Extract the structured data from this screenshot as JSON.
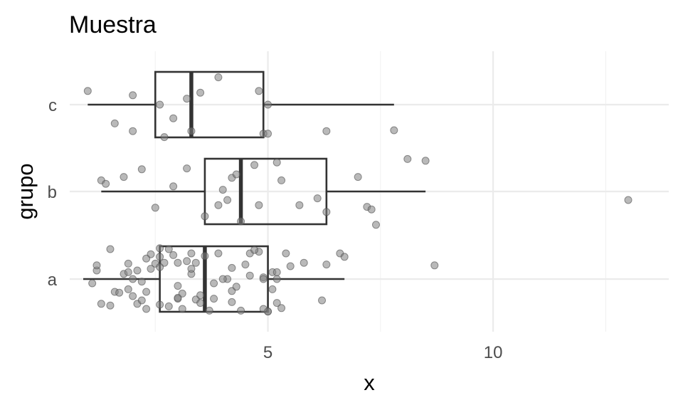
{
  "chart_data": {
    "type": "boxplot",
    "title": "Muestra",
    "xlabel": "x",
    "ylabel": "grupo",
    "xlim": [
      0.6,
      13.9
    ],
    "x_ticks": [
      5,
      10
    ],
    "x_minor": [
      2.5,
      7.5,
      12.5
    ],
    "categories": [
      "a",
      "b",
      "c"
    ],
    "grid": true,
    "orientation": "horizontal",
    "boxes": [
      {
        "group": "a",
        "whisker_low": 0.9,
        "q1": 2.6,
        "median": 3.6,
        "q3": 5.0,
        "whisker_high": 6.7
      },
      {
        "group": "b",
        "whisker_low": 1.3,
        "q1": 3.6,
        "median": 4.4,
        "q3": 6.3,
        "whisker_high": 8.5
      },
      {
        "group": "c",
        "whisker_low": 1.0,
        "q1": 2.5,
        "median": 3.3,
        "q3": 4.9,
        "whisker_high": 7.8
      }
    ],
    "points": [
      {
        "group": "a",
        "x": [
          1.8,
          2.6,
          1.9,
          3.3,
          2.0,
          5.1,
          3.6,
          4.5,
          1.9,
          2.4,
          1.2,
          4.1,
          3.0,
          2.3,
          2.8,
          1.6,
          3.8,
          4.9,
          2.6,
          4.2,
          3.4,
          2.3,
          5.2,
          3.5,
          3.2,
          1.5,
          4.3,
          5.8,
          2.0,
          3.0,
          2.4,
          6.6,
          1.1,
          4.6,
          5.0,
          2.1,
          3.0,
          6.3,
          2.6,
          3.1,
          5.4,
          2.2,
          4.2,
          6.2,
          3.8,
          5.3,
          4.0,
          3.3,
          1.7,
          2.9,
          3.5,
          2.5,
          4.8,
          4.2,
          1.2,
          3.7,
          2.1,
          5.1,
          1.3,
          2.8,
          5.0,
          4.6,
          3.1,
          6.7,
          2.3,
          4.4,
          5.2,
          1.9,
          3.0,
          2.7,
          8.7,
          4.9,
          2.6,
          3.9,
          5.5,
          1.5,
          4.7,
          5.2,
          3.4,
          2.2,
          3.3,
          4.9
        ],
        "jitter": [
          0.06,
          0.36,
          -0.12,
          0.3,
          -0.2,
          0.08,
          0.27,
          0.17,
          0.18,
          0.29,
          0.1,
          0.0,
          0.19,
          -0.15,
          0.35,
          -0.15,
          -0.05,
          0.02,
          0.26,
          -0.14,
          -0.24,
          0.24,
          -0.28,
          -0.19,
          0.21,
          -0.31,
          -0.09,
          0.19,
          0.0,
          -0.08,
          0.12,
          0.3,
          -0.05,
          0.3,
          -0.38,
          -0.29,
          -0.23,
          0.17,
          -0.3,
          -0.17,
          0.3,
          -0.25,
          0.13,
          -0.25,
          -0.23,
          -0.34,
          0.0,
          0.06,
          -0.16,
          0.28,
          -0.28,
          0.18,
          0.32,
          -0.27,
          0.16,
          -0.37,
          0.1,
          -0.12,
          -0.29,
          -0.32,
          -0.38,
          0.04,
          -0.35,
          0.26,
          -0.35,
          -0.37,
          0.0,
          0.08,
          -0.22,
          0.19,
          0.16,
          -0.35,
          0.14,
          0.3,
          0.15,
          0.35,
          0.34,
          0.08,
          0.19,
          -0.03,
          0.12,
          0.0
        ]
      },
      {
        "group": "b",
        "x": [
          1.3,
          1.4,
          1.8,
          2.2,
          2.5,
          2.9,
          3.2,
          3.6,
          3.9,
          4.0,
          4.1,
          4.2,
          4.3,
          4.4,
          4.7,
          4.8,
          5.2,
          5.3,
          5.7,
          6.1,
          6.3,
          7.0,
          7.2,
          7.3,
          7.4,
          8.1,
          8.5,
          13.0
        ],
        "jitter": [
          0.13,
          0.09,
          0.17,
          0.26,
          -0.19,
          0.06,
          0.27,
          -0.29,
          -0.16,
          0.02,
          -0.1,
          0.16,
          0.2,
          -0.35,
          0.31,
          -0.16,
          0.34,
          0.13,
          -0.16,
          -0.08,
          -0.24,
          0.17,
          -0.18,
          -0.21,
          -0.39,
          0.38,
          0.36,
          -0.1
        ]
      },
      {
        "group": "c",
        "x": [
          1.0,
          1.6,
          2.0,
          2.0,
          2.6,
          2.7,
          2.9,
          3.2,
          3.3,
          3.5,
          3.9,
          4.8,
          4.9,
          5.0,
          5.0,
          6.3,
          7.8
        ],
        "jitter": [
          0.16,
          -0.22,
          0.11,
          -0.31,
          0.0,
          -0.38,
          -0.16,
          0.07,
          -0.31,
          0.14,
          0.32,
          0.16,
          -0.34,
          0.0,
          -0.34,
          -0.31,
          -0.3
        ]
      }
    ]
  }
}
